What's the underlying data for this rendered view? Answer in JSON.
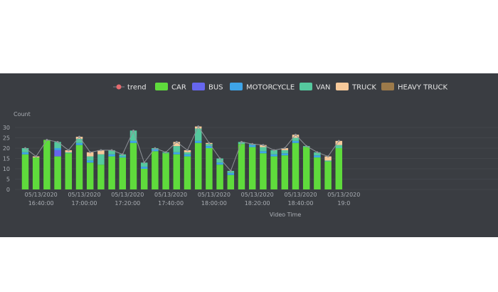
{
  "chart_data": {
    "type": "bar",
    "stacked": true,
    "title": "",
    "ylabel": "Count",
    "xlabel": "Video Time",
    "ylim": [
      0,
      30
    ],
    "yticks": [
      0,
      5,
      10,
      15,
      20,
      25,
      30
    ],
    "grid": true,
    "legend_position": "top",
    "x_tick_labels": [
      {
        "date": "05/13/2020",
        "time": "16:40:00"
      },
      {
        "date": "05/13/2020",
        "time": "17:00:00"
      },
      {
        "date": "05/13/2020",
        "time": "17:20:00"
      },
      {
        "date": "05/13/2020",
        "time": "17:40:00"
      },
      {
        "date": "05/13/2020",
        "time": "18:00:00"
      },
      {
        "date": "05/13/2020",
        "time": "18:20:00"
      },
      {
        "date": "05/13/2020",
        "time": "18:40:00"
      },
      {
        "date": "05/13/2020",
        "time": "19:0"
      }
    ],
    "x_tick_positions": [
      1,
      5,
      9,
      13,
      17,
      21,
      25,
      29
    ],
    "series": [
      {
        "name": "CAR",
        "color": "#5fdb3c",
        "values": [
          17,
          15.5,
          24,
          16,
          17.5,
          21.5,
          13,
          12,
          16,
          15.5,
          22.5,
          10,
          18.5,
          17.5,
          17,
          16,
          22.5,
          20,
          12,
          7,
          22,
          20.5,
          17.5,
          16,
          16.5,
          22.5,
          20.5,
          15.5,
          13.5,
          20
        ]
      },
      {
        "name": "BUS",
        "color": "#6666ee",
        "values": [
          0,
          0,
          0,
          3,
          0,
          0,
          0,
          0,
          0,
          0,
          0,
          0,
          0,
          0,
          0,
          0,
          0,
          0,
          0,
          0,
          0,
          0,
          0,
          0,
          0,
          0,
          0,
          0,
          0,
          0
        ]
      },
      {
        "name": "MOTORCYCLE",
        "color": "#3ea4e8",
        "values": [
          1,
          0,
          0,
          1,
          0,
          1,
          1,
          0,
          1,
          0.5,
          1,
          1,
          1,
          0,
          1,
          1,
          1,
          1,
          1,
          1,
          0,
          1,
          1,
          1,
          1,
          1,
          0,
          1,
          0,
          0
        ]
      },
      {
        "name": "VAN",
        "color": "#55c99e",
        "values": [
          2,
          0,
          0,
          3,
          0.5,
          2,
          2,
          5,
          2,
          1,
          5,
          2,
          0.5,
          0.5,
          3,
          1,
          6,
          1,
          2,
          1,
          1,
          0.5,
          2,
          2,
          1.5,
          1.5,
          0.5,
          1.5,
          0.5,
          1.5
        ]
      },
      {
        "name": "TRUCK",
        "color": "#f6c99a",
        "values": [
          0,
          0.5,
          0,
          0,
          1,
          1,
          2,
          2,
          0,
          0,
          0,
          0,
          0,
          0,
          2,
          1,
          1,
          0.5,
          0,
          0,
          0,
          0,
          1,
          0,
          1,
          1.5,
          0,
          0,
          2,
          2
        ]
      },
      {
        "name": "HEAVY TRUCK",
        "color": "#9c7a4a",
        "values": [
          0,
          0,
          0,
          0,
          0,
          0,
          0,
          0,
          0,
          0,
          0,
          0,
          0,
          0,
          0,
          0,
          0,
          0,
          0,
          0,
          0,
          0,
          0,
          0,
          0,
          0,
          0,
          0,
          0,
          0
        ]
      }
    ],
    "trend": {
      "name": "trend",
      "color": "#e56b6f",
      "line_color": "#8e9298"
    }
  },
  "legend": [
    {
      "label": "trend",
      "color": "#e56b6f",
      "shape": "dot"
    },
    {
      "label": "CAR",
      "color": "#5fdb3c",
      "shape": "rect"
    },
    {
      "label": "BUS",
      "color": "#6666ee",
      "shape": "rect"
    },
    {
      "label": "MOTORCYCLE",
      "color": "#3ea4e8",
      "shape": "rect"
    },
    {
      "label": "VAN",
      "color": "#55c99e",
      "shape": "rect"
    },
    {
      "label": "TRUCK",
      "color": "#f6c99a",
      "shape": "rect"
    },
    {
      "label": "HEAVY TRUCK",
      "color": "#9c7a4a",
      "shape": "rect"
    }
  ],
  "colors": {
    "panel_background": "#3a3d42",
    "grid": "#4a4e54",
    "tick_text": "#a9adb3",
    "legend_text": "#e6e6e6"
  }
}
